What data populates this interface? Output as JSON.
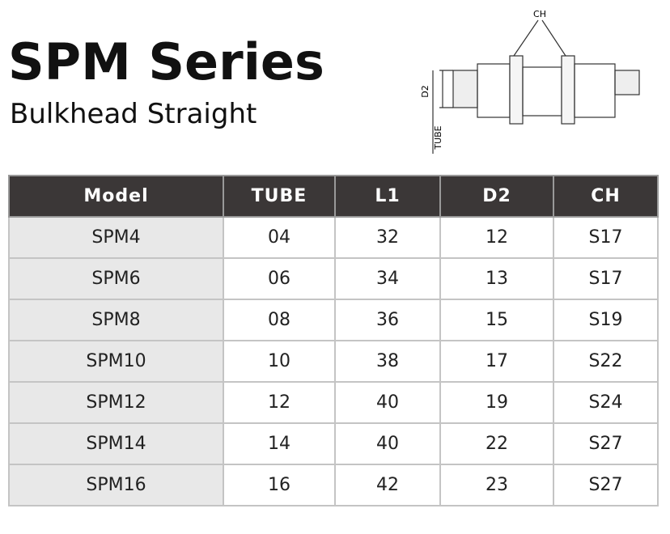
{
  "header": {
    "title": "SPM Series",
    "subtitle": "Bulkhead Straight"
  },
  "diagram": {
    "labels": [
      "CH",
      "D2",
      "TUBE"
    ]
  },
  "table": {
    "columns": [
      "Model",
      "TUBE",
      "L1",
      "D2",
      "CH"
    ],
    "rows": [
      [
        "SPM4",
        "04",
        "32",
        "12",
        "S17"
      ],
      [
        "SPM6",
        "06",
        "34",
        "13",
        "S17"
      ],
      [
        "SPM8",
        "08",
        "36",
        "15",
        "S19"
      ],
      [
        "SPM10",
        "10",
        "38",
        "17",
        "S22"
      ],
      [
        "SPM12",
        "12",
        "40",
        "19",
        "S24"
      ],
      [
        "SPM14",
        "14",
        "40",
        "22",
        "S27"
      ],
      [
        "SPM16",
        "16",
        "42",
        "23",
        "S27"
      ]
    ]
  }
}
